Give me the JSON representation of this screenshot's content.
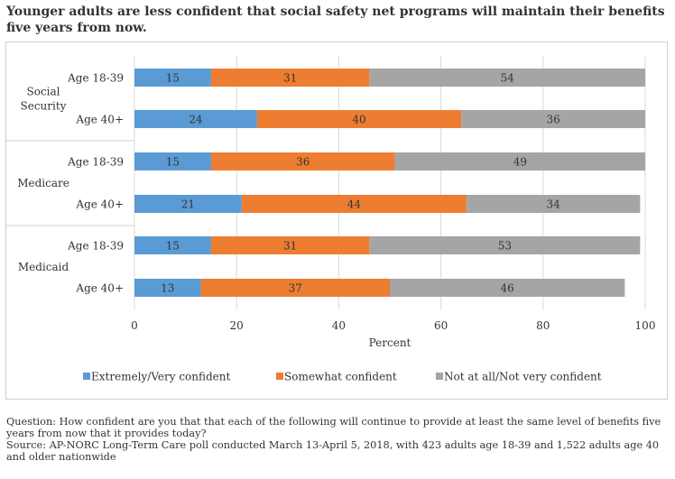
{
  "title": "Younger adults are less confident that social safety net programs will maintain their benefits five years from now.",
  "chart_data": {
    "type": "bar",
    "orientation": "horizontal",
    "stacked": true,
    "xlabel": "Percent",
    "xlim": [
      0,
      100
    ],
    "xticks": [
      0,
      20,
      40,
      60,
      80,
      100
    ],
    "groups": [
      {
        "name": "Social Security",
        "label_lines": [
          "Social",
          "Security"
        ],
        "rows": [
          {
            "label": "Age 18-39",
            "values": [
              15,
              31,
              54
            ]
          },
          {
            "label": "Age 40+",
            "values": [
              24,
              40,
              36
            ]
          }
        ]
      },
      {
        "name": "Medicare",
        "label_lines": [
          "Medicare"
        ],
        "rows": [
          {
            "label": "Age 18-39",
            "values": [
              15,
              36,
              49
            ]
          },
          {
            "label": "Age 40+",
            "values": [
              21,
              44,
              34
            ]
          }
        ]
      },
      {
        "name": "Medicaid",
        "label_lines": [
          "Medicaid"
        ],
        "rows": [
          {
            "label": "Age 18-39",
            "values": [
              15,
              31,
              53
            ]
          },
          {
            "label": "Age 40+",
            "values": [
              13,
              37,
              46
            ]
          }
        ]
      }
    ],
    "series": [
      {
        "name": "Extremely/Very confident",
        "color": "#5b9bd5"
      },
      {
        "name": "Somewhat confident",
        "color": "#ed7d31"
      },
      {
        "name": "Not at all/Not very confident",
        "color": "#a5a5a5"
      }
    ],
    "legend_position": "bottom",
    "grid": true
  },
  "notes": {
    "question": "Question: How confident are you that that each of the following will continue to provide at least the same level of benefits five years from now that it provides today?",
    "source": "Source: AP-NORC Long-Term Care poll conducted March 13-April 5, 2018, with 423 adults age 18-39 and 1,522 adults age 40 and older nationwide"
  }
}
